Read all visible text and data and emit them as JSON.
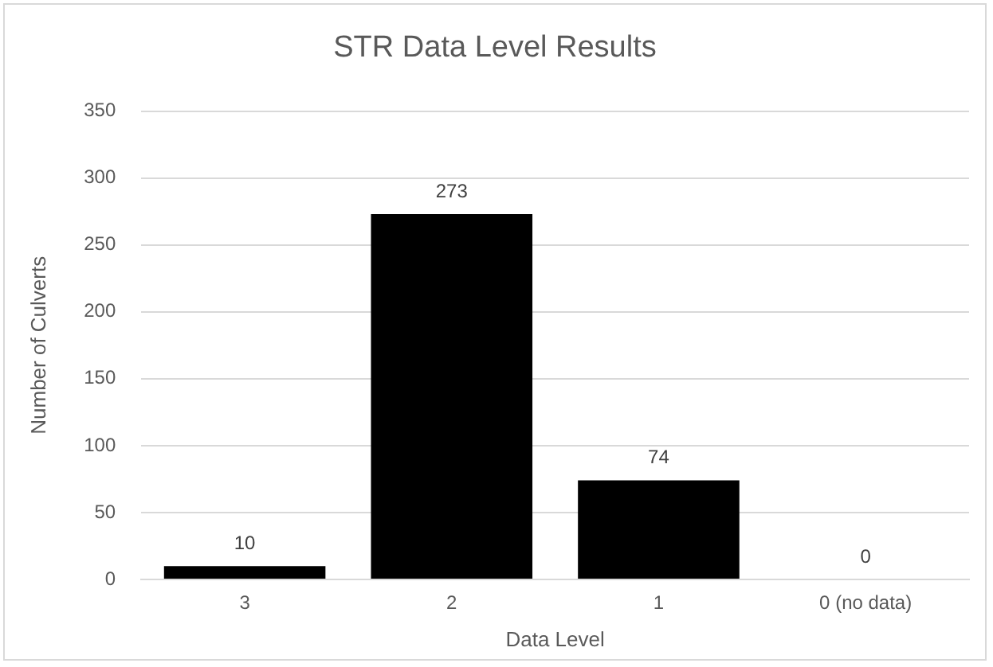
{
  "chart_data": {
    "type": "bar",
    "title": "STR Data Level Results",
    "xlabel": "Data Level",
    "ylabel": "Number of Culverts",
    "categories": [
      "3",
      "2",
      "1",
      "0 (no data)"
    ],
    "values": [
      10,
      273,
      74,
      0
    ],
    "color": "#000000",
    "ylim": [
      0,
      350
    ],
    "yticks": [
      0,
      50,
      100,
      150,
      200,
      250,
      300,
      350
    ],
    "grid": "y",
    "data_labels": true
  }
}
